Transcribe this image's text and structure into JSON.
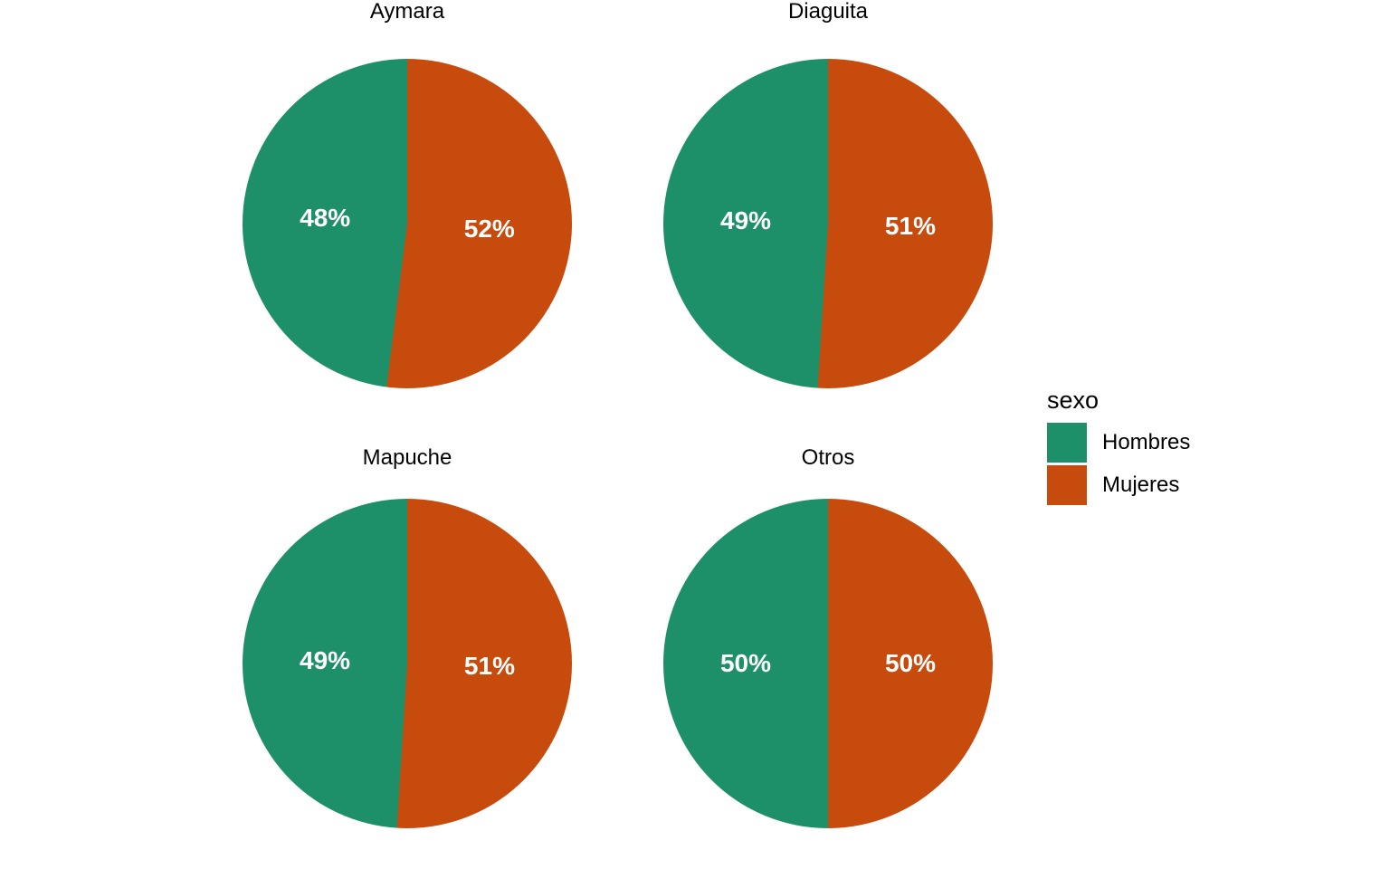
{
  "colors": {
    "Hombres": "#1E9069",
    "Mujeres": "#C74B0C",
    "background": "#FFFFFF",
    "label_text": "#FFFFFF",
    "title_text": "#000000"
  },
  "legend": {
    "title": "sexo",
    "position": "right",
    "items": [
      {
        "label": "Hombres"
      },
      {
        "label": "Mujeres"
      }
    ]
  },
  "chart_data": {
    "type": "pie",
    "layout": "2x2 facet grid of pies, legend on right",
    "legend_title": "sexo",
    "start_angle": "top",
    "direction": "clockwise",
    "facets": [
      {
        "title": "Aymara",
        "slices": [
          {
            "name": "Mujeres",
            "pct": 52,
            "text": "52%"
          },
          {
            "name": "Hombres",
            "pct": 48,
            "text": "48%"
          }
        ]
      },
      {
        "title": "Diaguita",
        "slices": [
          {
            "name": "Mujeres",
            "pct": 51,
            "text": "51%"
          },
          {
            "name": "Hombres",
            "pct": 49,
            "text": "49%"
          }
        ]
      },
      {
        "title": "Mapuche",
        "slices": [
          {
            "name": "Mujeres",
            "pct": 51,
            "text": "51%"
          },
          {
            "name": "Hombres",
            "pct": 49,
            "text": "49%"
          }
        ]
      },
      {
        "title": "Otros",
        "slices": [
          {
            "name": "Mujeres",
            "pct": 50,
            "text": "50%"
          },
          {
            "name": "Hombres",
            "pct": 50,
            "text": "50%"
          }
        ]
      }
    ]
  }
}
